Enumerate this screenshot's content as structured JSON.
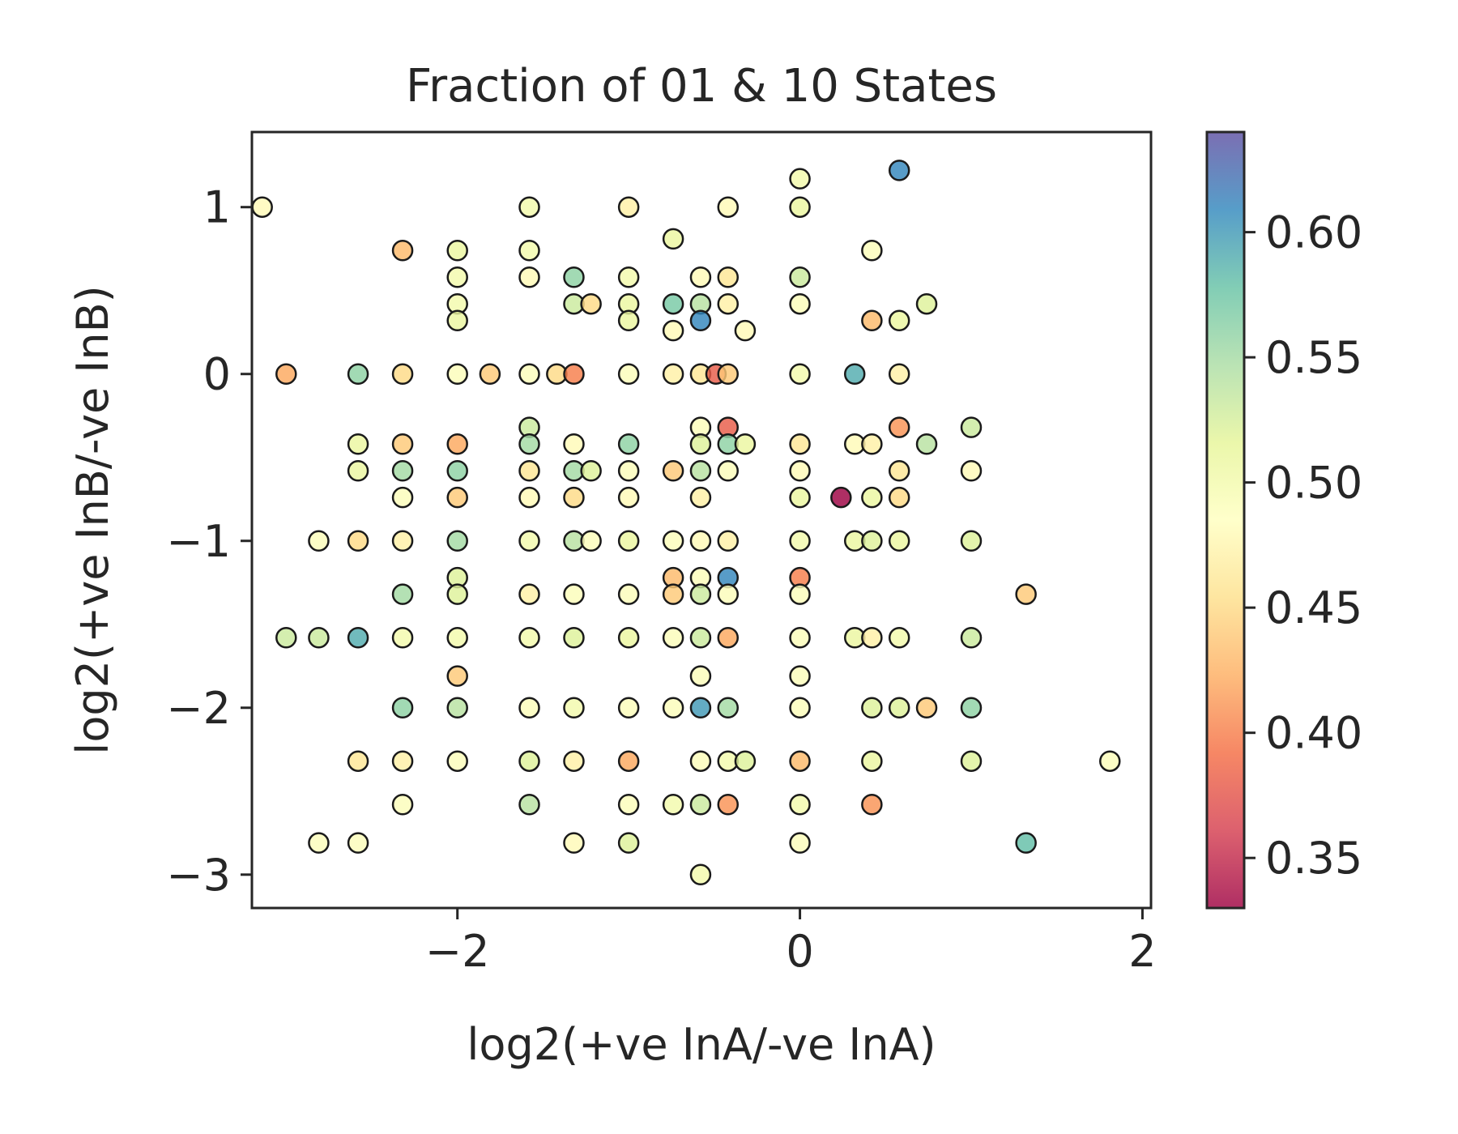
{
  "chart_data": {
    "type": "scatter",
    "title": "Fraction of 01 & 10 States",
    "xlabel": "log2(+ve InA/-ve InA)",
    "ylabel": "log2(+ve InB/-ve InB)",
    "xlim": [
      -3.2,
      2.05
    ],
    "ylim": [
      -3.2,
      1.45
    ],
    "xticks": [
      -2,
      0,
      2
    ],
    "xtick_labels": [
      "−2",
      "0",
      "2"
    ],
    "yticks": [
      1,
      0,
      -1,
      -2,
      -3
    ],
    "ytick_labels": [
      "1",
      "0",
      "−1",
      "−2",
      "−3"
    ],
    "grid": false,
    "colorbar": {
      "colormap": "Spectral",
      "range": [
        0.33,
        0.64
      ],
      "ticks": [
        0.6,
        0.55,
        0.5,
        0.45,
        0.4,
        0.35
      ],
      "tick_labels": [
        "0.60",
        "0.55",
        "0.50",
        "0.45",
        "0.40",
        "0.35"
      ]
    },
    "points": [
      {
        "x": -3.14,
        "y": 1.0,
        "c": 0.48
      },
      {
        "x": -2.32,
        "y": 0.74,
        "c": 0.43
      },
      {
        "x": -2.0,
        "y": 0.74,
        "c": 0.51
      },
      {
        "x": -1.58,
        "y": 1.0,
        "c": 0.5
      },
      {
        "x": -1.58,
        "y": 0.74,
        "c": 0.5
      },
      {
        "x": -1.0,
        "y": 1.0,
        "c": 0.47
      },
      {
        "x": -0.74,
        "y": 0.81,
        "c": 0.51
      },
      {
        "x": -0.42,
        "y": 1.0,
        "c": 0.48
      },
      {
        "x": 0.0,
        "y": 1.17,
        "c": 0.5
      },
      {
        "x": 0.0,
        "y": 1.0,
        "c": 0.51
      },
      {
        "x": 0.58,
        "y": 1.22,
        "c": 0.61
      },
      {
        "x": 0.42,
        "y": 0.74,
        "c": 0.49
      },
      {
        "x": -2.0,
        "y": 0.58,
        "c": 0.5
      },
      {
        "x": -1.58,
        "y": 0.58,
        "c": 0.48
      },
      {
        "x": -1.32,
        "y": 0.58,
        "c": 0.56
      },
      {
        "x": -1.0,
        "y": 0.58,
        "c": 0.5
      },
      {
        "x": -0.58,
        "y": 0.58,
        "c": 0.48
      },
      {
        "x": -0.42,
        "y": 0.58,
        "c": 0.46
      },
      {
        "x": 0.0,
        "y": 0.58,
        "c": 0.53
      },
      {
        "x": -2.0,
        "y": 0.42,
        "c": 0.5
      },
      {
        "x": -1.32,
        "y": 0.42,
        "c": 0.53
      },
      {
        "x": -1.22,
        "y": 0.42,
        "c": 0.45
      },
      {
        "x": -1.0,
        "y": 0.42,
        "c": 0.51
      },
      {
        "x": -0.74,
        "y": 0.42,
        "c": 0.57
      },
      {
        "x": -0.58,
        "y": 0.42,
        "c": 0.54
      },
      {
        "x": -0.42,
        "y": 0.42,
        "c": 0.47
      },
      {
        "x": 0.0,
        "y": 0.42,
        "c": 0.49
      },
      {
        "x": 0.74,
        "y": 0.42,
        "c": 0.52
      },
      {
        "x": -2.0,
        "y": 0.32,
        "c": 0.51
      },
      {
        "x": -1.0,
        "y": 0.32,
        "c": 0.51
      },
      {
        "x": -0.74,
        "y": 0.26,
        "c": 0.48
      },
      {
        "x": -0.58,
        "y": 0.32,
        "c": 0.61
      },
      {
        "x": -0.32,
        "y": 0.26,
        "c": 0.48
      },
      {
        "x": 0.42,
        "y": 0.32,
        "c": 0.43
      },
      {
        "x": 0.58,
        "y": 0.32,
        "c": 0.51
      },
      {
        "x": -3.0,
        "y": 0.0,
        "c": 0.42
      },
      {
        "x": -2.58,
        "y": 0.0,
        "c": 0.56
      },
      {
        "x": -2.32,
        "y": 0.0,
        "c": 0.45
      },
      {
        "x": -2.0,
        "y": 0.0,
        "c": 0.49
      },
      {
        "x": -1.81,
        "y": 0.0,
        "c": 0.44
      },
      {
        "x": -1.58,
        "y": 0.0,
        "c": 0.49
      },
      {
        "x": -1.42,
        "y": 0.0,
        "c": 0.45
      },
      {
        "x": -1.32,
        "y": 0.0,
        "c": 0.4
      },
      {
        "x": -1.0,
        "y": 0.0,
        "c": 0.49
      },
      {
        "x": -0.74,
        "y": 0.0,
        "c": 0.47
      },
      {
        "x": -0.58,
        "y": 0.0,
        "c": 0.46
      },
      {
        "x": -0.49,
        "y": 0.0,
        "c": 0.38
      },
      {
        "x": -0.42,
        "y": 0.0,
        "c": 0.44
      },
      {
        "x": 0.0,
        "y": 0.0,
        "c": 0.5
      },
      {
        "x": 0.32,
        "y": 0.0,
        "c": 0.59
      },
      {
        "x": 0.58,
        "y": 0.0,
        "c": 0.47
      },
      {
        "x": -1.58,
        "y": -0.32,
        "c": 0.53
      },
      {
        "x": -0.58,
        "y": -0.32,
        "c": 0.49
      },
      {
        "x": -0.42,
        "y": -0.32,
        "c": 0.38
      },
      {
        "x": 0.58,
        "y": -0.32,
        "c": 0.41
      },
      {
        "x": 1.0,
        "y": -0.32,
        "c": 0.53
      },
      {
        "x": -2.58,
        "y": -0.42,
        "c": 0.51
      },
      {
        "x": -2.32,
        "y": -0.42,
        "c": 0.44
      },
      {
        "x": -2.0,
        "y": -0.42,
        "c": 0.42
      },
      {
        "x": -1.58,
        "y": -0.42,
        "c": 0.55
      },
      {
        "x": -1.32,
        "y": -0.42,
        "c": 0.48
      },
      {
        "x": -1.0,
        "y": -0.42,
        "c": 0.56
      },
      {
        "x": -0.58,
        "y": -0.42,
        "c": 0.52
      },
      {
        "x": -0.42,
        "y": -0.42,
        "c": 0.56
      },
      {
        "x": -0.32,
        "y": -0.42,
        "c": 0.51
      },
      {
        "x": 0.0,
        "y": -0.42,
        "c": 0.46
      },
      {
        "x": 0.32,
        "y": -0.42,
        "c": 0.48
      },
      {
        "x": 0.42,
        "y": -0.42,
        "c": 0.47
      },
      {
        "x": 0.74,
        "y": -0.42,
        "c": 0.54
      },
      {
        "x": -2.58,
        "y": -0.58,
        "c": 0.51
      },
      {
        "x": -2.32,
        "y": -0.58,
        "c": 0.55
      },
      {
        "x": -2.0,
        "y": -0.58,
        "c": 0.56
      },
      {
        "x": -1.58,
        "y": -0.58,
        "c": 0.46
      },
      {
        "x": -1.32,
        "y": -0.58,
        "c": 0.55
      },
      {
        "x": -1.22,
        "y": -0.58,
        "c": 0.52
      },
      {
        "x": -1.0,
        "y": -0.58,
        "c": 0.49
      },
      {
        "x": -0.74,
        "y": -0.58,
        "c": 0.44
      },
      {
        "x": -0.58,
        "y": -0.58,
        "c": 0.54
      },
      {
        "x": -0.42,
        "y": -0.58,
        "c": 0.49
      },
      {
        "x": 0.0,
        "y": -0.58,
        "c": 0.48
      },
      {
        "x": 0.58,
        "y": -0.58,
        "c": 0.46
      },
      {
        "x": 1.0,
        "y": -0.58,
        "c": 0.48
      },
      {
        "x": -2.32,
        "y": -0.74,
        "c": 0.49
      },
      {
        "x": -2.0,
        "y": -0.74,
        "c": 0.44
      },
      {
        "x": -1.58,
        "y": -0.74,
        "c": 0.48
      },
      {
        "x": -1.32,
        "y": -0.74,
        "c": 0.45
      },
      {
        "x": -1.0,
        "y": -0.74,
        "c": 0.48
      },
      {
        "x": -0.58,
        "y": -0.74,
        "c": 0.47
      },
      {
        "x": 0.0,
        "y": -0.74,
        "c": 0.51
      },
      {
        "x": 0.24,
        "y": -0.74,
        "c": 0.33
      },
      {
        "x": 0.42,
        "y": -0.74,
        "c": 0.51
      },
      {
        "x": 0.58,
        "y": -0.74,
        "c": 0.45
      },
      {
        "x": -2.81,
        "y": -1.0,
        "c": 0.49
      },
      {
        "x": -2.58,
        "y": -1.0,
        "c": 0.45
      },
      {
        "x": -2.32,
        "y": -1.0,
        "c": 0.47
      },
      {
        "x": -2.0,
        "y": -1.0,
        "c": 0.55
      },
      {
        "x": -1.58,
        "y": -1.0,
        "c": 0.5
      },
      {
        "x": -1.32,
        "y": -1.0,
        "c": 0.54
      },
      {
        "x": -1.22,
        "y": -1.0,
        "c": 0.49
      },
      {
        "x": -1.0,
        "y": -1.0,
        "c": 0.51
      },
      {
        "x": -0.74,
        "y": -1.0,
        "c": 0.49
      },
      {
        "x": -0.58,
        "y": -1.0,
        "c": 0.48
      },
      {
        "x": -0.42,
        "y": -1.0,
        "c": 0.47
      },
      {
        "x": 0.0,
        "y": -1.0,
        "c": 0.5
      },
      {
        "x": 0.32,
        "y": -1.0,
        "c": 0.51
      },
      {
        "x": 0.42,
        "y": -1.0,
        "c": 0.52
      },
      {
        "x": 0.58,
        "y": -1.0,
        "c": 0.51
      },
      {
        "x": 1.0,
        "y": -1.0,
        "c": 0.52
      },
      {
        "x": -2.0,
        "y": -1.22,
        "c": 0.52
      },
      {
        "x": -0.74,
        "y": -1.22,
        "c": 0.43
      },
      {
        "x": -0.58,
        "y": -1.22,
        "c": 0.49
      },
      {
        "x": -0.42,
        "y": -1.22,
        "c": 0.61
      },
      {
        "x": 0.0,
        "y": -1.22,
        "c": 0.4
      },
      {
        "x": -2.32,
        "y": -1.32,
        "c": 0.55
      },
      {
        "x": -2.0,
        "y": -1.32,
        "c": 0.52
      },
      {
        "x": -1.58,
        "y": -1.32,
        "c": 0.47
      },
      {
        "x": -1.32,
        "y": -1.32,
        "c": 0.49
      },
      {
        "x": -1.0,
        "y": -1.32,
        "c": 0.49
      },
      {
        "x": -0.74,
        "y": -1.32,
        "c": 0.44
      },
      {
        "x": -0.58,
        "y": -1.32,
        "c": 0.53
      },
      {
        "x": -0.42,
        "y": -1.32,
        "c": 0.49
      },
      {
        "x": 0.0,
        "y": -1.32,
        "c": 0.49
      },
      {
        "x": 1.32,
        "y": -1.32,
        "c": 0.44
      },
      {
        "x": -3.0,
        "y": -1.58,
        "c": 0.53
      },
      {
        "x": -2.81,
        "y": -1.58,
        "c": 0.53
      },
      {
        "x": -2.58,
        "y": -1.58,
        "c": 0.59
      },
      {
        "x": -2.32,
        "y": -1.58,
        "c": 0.5
      },
      {
        "x": -2.0,
        "y": -1.58,
        "c": 0.5
      },
      {
        "x": -1.58,
        "y": -1.58,
        "c": 0.5
      },
      {
        "x": -1.32,
        "y": -1.58,
        "c": 0.52
      },
      {
        "x": -1.0,
        "y": -1.58,
        "c": 0.51
      },
      {
        "x": -0.74,
        "y": -1.58,
        "c": 0.49
      },
      {
        "x": -0.58,
        "y": -1.58,
        "c": 0.53
      },
      {
        "x": -0.42,
        "y": -1.58,
        "c": 0.42
      },
      {
        "x": 0.0,
        "y": -1.58,
        "c": 0.49
      },
      {
        "x": 0.32,
        "y": -1.58,
        "c": 0.51
      },
      {
        "x": 0.42,
        "y": -1.58,
        "c": 0.47
      },
      {
        "x": 0.58,
        "y": -1.58,
        "c": 0.5
      },
      {
        "x": 1.0,
        "y": -1.58,
        "c": 0.53
      },
      {
        "x": -2.0,
        "y": -1.81,
        "c": 0.44
      },
      {
        "x": -0.58,
        "y": -1.81,
        "c": 0.49
      },
      {
        "x": 0.0,
        "y": -1.81,
        "c": 0.49
      },
      {
        "x": -2.32,
        "y": -2.0,
        "c": 0.56
      },
      {
        "x": -2.0,
        "y": -2.0,
        "c": 0.54
      },
      {
        "x": -1.58,
        "y": -2.0,
        "c": 0.49
      },
      {
        "x": -1.32,
        "y": -2.0,
        "c": 0.5
      },
      {
        "x": -1.0,
        "y": -2.0,
        "c": 0.49
      },
      {
        "x": -0.74,
        "y": -2.0,
        "c": 0.49
      },
      {
        "x": -0.58,
        "y": -2.0,
        "c": 0.6
      },
      {
        "x": -0.42,
        "y": -2.0,
        "c": 0.55
      },
      {
        "x": 0.0,
        "y": -2.0,
        "c": 0.49
      },
      {
        "x": 0.42,
        "y": -2.0,
        "c": 0.52
      },
      {
        "x": 0.58,
        "y": -2.0,
        "c": 0.52
      },
      {
        "x": 0.74,
        "y": -2.0,
        "c": 0.44
      },
      {
        "x": 1.0,
        "y": -2.0,
        "c": 0.56
      },
      {
        "x": -2.58,
        "y": -2.32,
        "c": 0.46
      },
      {
        "x": -2.32,
        "y": -2.32,
        "c": 0.47
      },
      {
        "x": -2.0,
        "y": -2.32,
        "c": 0.49
      },
      {
        "x": -1.58,
        "y": -2.32,
        "c": 0.52
      },
      {
        "x": -1.32,
        "y": -2.32,
        "c": 0.47
      },
      {
        "x": -1.0,
        "y": -2.32,
        "c": 0.42
      },
      {
        "x": -0.58,
        "y": -2.32,
        "c": 0.49
      },
      {
        "x": -0.42,
        "y": -2.32,
        "c": 0.5
      },
      {
        "x": -0.32,
        "y": -2.32,
        "c": 0.52
      },
      {
        "x": 0.0,
        "y": -2.32,
        "c": 0.43
      },
      {
        "x": 0.42,
        "y": -2.32,
        "c": 0.51
      },
      {
        "x": 1.0,
        "y": -2.32,
        "c": 0.52
      },
      {
        "x": 1.81,
        "y": -2.32,
        "c": 0.49
      },
      {
        "x": -2.32,
        "y": -2.58,
        "c": 0.49
      },
      {
        "x": -1.58,
        "y": -2.58,
        "c": 0.54
      },
      {
        "x": -1.0,
        "y": -2.58,
        "c": 0.49
      },
      {
        "x": -0.74,
        "y": -2.58,
        "c": 0.5
      },
      {
        "x": -0.58,
        "y": -2.58,
        "c": 0.53
      },
      {
        "x": -0.42,
        "y": -2.58,
        "c": 0.41
      },
      {
        "x": 0.0,
        "y": -2.58,
        "c": 0.5
      },
      {
        "x": 0.42,
        "y": -2.58,
        "c": 0.41
      },
      {
        "x": -2.81,
        "y": -2.81,
        "c": 0.49
      },
      {
        "x": -2.58,
        "y": -2.81,
        "c": 0.49
      },
      {
        "x": -1.32,
        "y": -2.81,
        "c": 0.48
      },
      {
        "x": -1.0,
        "y": -2.81,
        "c": 0.52
      },
      {
        "x": 0.0,
        "y": -2.81,
        "c": 0.49
      },
      {
        "x": 1.32,
        "y": -2.81,
        "c": 0.58
      },
      {
        "x": -0.58,
        "y": -3.0,
        "c": 0.5
      }
    ]
  }
}
